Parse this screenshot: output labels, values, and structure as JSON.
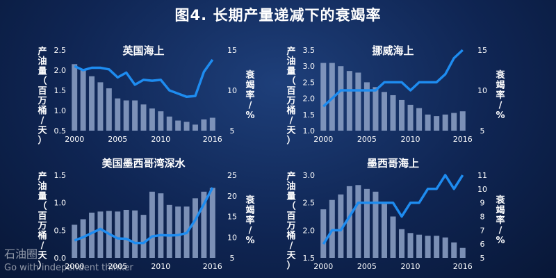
{
  "title": "图4. 长期产量递减下的衰竭率",
  "watermark": {
    "logo": "石油圈",
    "tagline": "Go with independent thinker"
  },
  "styles": {
    "bar_color": "#8fa3c8",
    "line_color": "#1e8cf0",
    "text_color": "#ffffff"
  },
  "chart_data": [
    {
      "type": "bar+line",
      "title": "英国海上",
      "left_axis_label": "产油量（百万桶/天）",
      "right_axis_label": "衰竭率/%",
      "x": [
        2000,
        2001,
        2002,
        2003,
        2004,
        2005,
        2006,
        2007,
        2008,
        2009,
        2010,
        2011,
        2012,
        2013,
        2014,
        2015,
        2016
      ],
      "x_ticks": [
        2000,
        2005,
        2010,
        2016
      ],
      "bar_values": [
        2.15,
        2.0,
        1.85,
        1.7,
        1.55,
        1.3,
        1.25,
        1.25,
        1.15,
        1.05,
        0.98,
        0.85,
        0.75,
        0.72,
        0.65,
        0.78,
        0.82
      ],
      "line_values": [
        13.0,
        12.5,
        12.8,
        12.8,
        12.6,
        11.6,
        12.2,
        10.7,
        11.3,
        11.2,
        11.3,
        10.0,
        9.6,
        9.2,
        9.3,
        12.3,
        13.8
      ],
      "left_ylim": [
        0.5,
        2.5
      ],
      "left_ticks": [
        "0.5",
        "1.0",
        "1.5",
        "2.0",
        "2.5"
      ],
      "right_ylim": [
        5,
        15
      ],
      "right_ticks": [
        "5",
        "10",
        "15"
      ]
    },
    {
      "type": "bar+line",
      "title": "挪威海上",
      "left_axis_label": "产油量（百万桶/天）",
      "right_axis_label": "衰竭率/%",
      "x": [
        2000,
        2001,
        2002,
        2003,
        2004,
        2005,
        2006,
        2007,
        2008,
        2009,
        2010,
        2011,
        2012,
        2013,
        2014,
        2015,
        2016
      ],
      "x_ticks": [
        2000,
        2005,
        2010,
        2016
      ],
      "bar_values": [
        3.1,
        3.1,
        3.0,
        2.85,
        2.8,
        2.5,
        2.35,
        2.2,
        2.1,
        1.95,
        1.8,
        1.7,
        1.5,
        1.45,
        1.5,
        1.55,
        1.6
      ],
      "line_values": [
        8,
        9,
        10,
        10,
        10,
        10,
        10,
        11,
        11,
        11,
        10,
        11,
        11,
        11,
        12,
        14,
        15
      ],
      "left_ylim": [
        1.0,
        3.5
      ],
      "left_ticks": [
        "1.0",
        "1.5",
        "2.0",
        "2.5",
        "3.0",
        "3.5"
      ],
      "right_ylim": [
        5,
        15
      ],
      "right_ticks": [
        "5",
        "10",
        "15"
      ]
    },
    {
      "type": "bar+line",
      "title": "美国墨西哥湾深水",
      "left_axis_label": "产油量（百万桶/天）",
      "right_axis_label": "衰竭率/%",
      "x": [
        2000,
        2001,
        2002,
        2003,
        2004,
        2005,
        2006,
        2007,
        2008,
        2009,
        2010,
        2011,
        2012,
        2013,
        2014,
        2015,
        2016
      ],
      "x_ticks": [
        2000,
        2005,
        2010,
        2016
      ],
      "bar_values": [
        0.6,
        0.7,
        0.82,
        0.84,
        0.85,
        0.84,
        0.87,
        0.86,
        0.78,
        1.2,
        1.17,
        0.96,
        0.93,
        0.93,
        1.08,
        1.2,
        1.27
      ],
      "line_values": [
        9.2,
        10.0,
        11.0,
        12.0,
        10.8,
        9.7,
        9.6,
        8.6,
        8.6,
        10.2,
        10.5,
        10.4,
        10.5,
        11.0,
        14.2,
        18.0,
        22.0
      ],
      "left_ylim": [
        0.0,
        1.5
      ],
      "left_ticks": [
        "0.0",
        "0.5",
        "1.0",
        "1.5"
      ],
      "right_ylim": [
        5,
        25
      ],
      "right_ticks": [
        "5",
        "10",
        "15",
        "20",
        "25"
      ]
    },
    {
      "type": "bar+line",
      "title": "墨西哥海上",
      "left_axis_label": "产油量（百万桶/天）",
      "right_axis_label": "衰竭率/%",
      "x": [
        2000,
        2001,
        2002,
        2003,
        2004,
        2005,
        2006,
        2007,
        2008,
        2009,
        2010,
        2011,
        2012,
        2013,
        2014,
        2015,
        2016
      ],
      "x_ticks": [
        2000,
        2005,
        2010,
        2016
      ],
      "bar_values": [
        2.38,
        2.55,
        2.65,
        2.8,
        2.82,
        2.75,
        2.7,
        2.5,
        2.25,
        2.02,
        1.95,
        1.92,
        1.9,
        1.9,
        1.87,
        1.78,
        1.68
      ],
      "line_values": [
        6,
        7,
        7,
        8,
        9,
        9,
        9,
        9,
        9,
        8,
        9,
        9,
        10,
        10,
        11,
        10,
        11
      ],
      "left_ylim": [
        1.5,
        3.0
      ],
      "left_ticks": [
        "1.5",
        "2.0",
        "2.5",
        "3.0"
      ],
      "right_ylim": [
        5,
        11
      ],
      "right_ticks": [
        "5",
        "6",
        "7",
        "8",
        "9",
        "10",
        "11"
      ]
    }
  ]
}
